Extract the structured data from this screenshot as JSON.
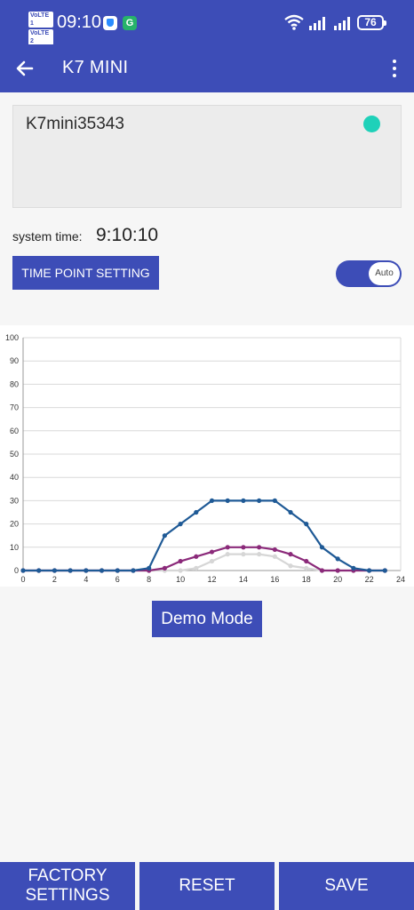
{
  "status_bar": {
    "volte1": "VoLTE 1",
    "volte2": "VoLTE 2",
    "time": "09:10",
    "battery": "76"
  },
  "app_bar": {
    "title": "K7 MINI"
  },
  "device": {
    "name": "K7mini35343",
    "status_color": "#1fd1b9"
  },
  "system_time": {
    "label": "system time:",
    "value": "9:10:10"
  },
  "time_point_button": "TIME POINT SETTING",
  "auto_toggle": {
    "label": "Auto",
    "on": true
  },
  "chart_data": {
    "type": "line",
    "x": [
      0,
      1,
      2,
      3,
      4,
      5,
      6,
      7,
      8,
      9,
      10,
      11,
      12,
      13,
      14,
      15,
      16,
      17,
      18,
      19,
      20,
      21,
      22,
      23
    ],
    "x_ticks": [
      0,
      2,
      4,
      6,
      8,
      10,
      12,
      14,
      16,
      18,
      20,
      22,
      24
    ],
    "y_ticks": [
      0,
      10,
      20,
      30,
      40,
      50,
      60,
      70,
      80,
      90,
      100
    ],
    "xlim": [
      0,
      24
    ],
    "ylim": [
      0,
      100
    ],
    "grid": true,
    "series": [
      {
        "color": "#d6d6d6",
        "values": [
          0,
          0,
          0,
          0,
          0,
          0,
          0,
          0,
          0,
          0,
          0,
          1,
          4,
          7,
          7,
          7,
          6,
          2,
          1,
          0,
          0,
          0,
          0,
          0
        ]
      },
      {
        "color": "#8b2a7a",
        "values": [
          0,
          0,
          0,
          0,
          0,
          0,
          0,
          0,
          0,
          1,
          4,
          6,
          8,
          10,
          10,
          10,
          9,
          7,
          4,
          0,
          0,
          0,
          0,
          0
        ]
      },
      {
        "color": "#1f5a96",
        "values": [
          0,
          0,
          0,
          0,
          0,
          0,
          0,
          0,
          1,
          15,
          20,
          25,
          30,
          30,
          30,
          30,
          30,
          25,
          20,
          10,
          5,
          1,
          0,
          0
        ]
      }
    ]
  },
  "demo_button": "Demo Mode",
  "bottom_buttons": {
    "factory": "FACTORY\nSETTINGS",
    "reset": "RESET",
    "save": "SAVE"
  }
}
